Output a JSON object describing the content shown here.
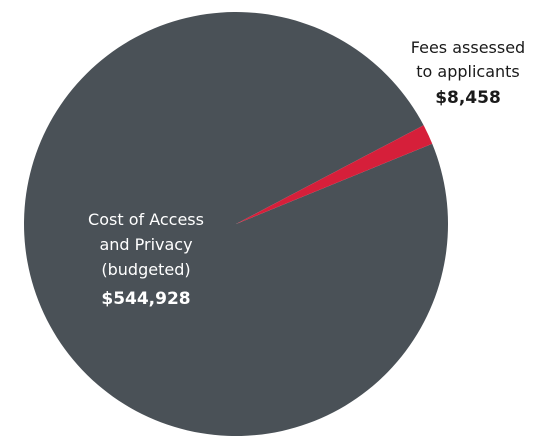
{
  "chart_data": {
    "type": "pie",
    "slices": [
      {
        "label_lines": [
          "Cost of Access",
          "and Privacy",
          "(budgeted)"
        ],
        "value_label": "$544,928",
        "value": 544928,
        "color": "#4a5157"
      },
      {
        "label_lines": [
          "Fees assessed",
          "to applicants"
        ],
        "value_label": "$8,458",
        "value": 8458,
        "color": "#d61f3a"
      }
    ]
  }
}
